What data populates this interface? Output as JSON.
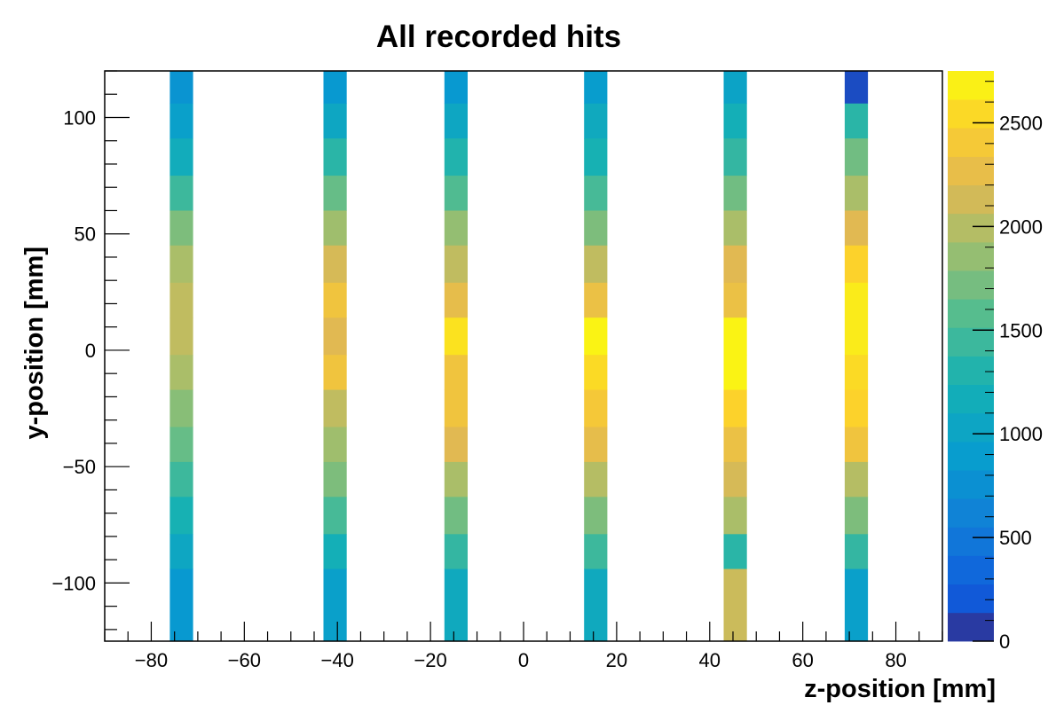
{
  "chart_data": {
    "type": "heatmap",
    "title": "All recorded hits",
    "xlabel": "z-position [mm]",
    "ylabel": "y-position [mm]",
    "xlim": [
      -90,
      90
    ],
    "ylim": [
      -125,
      120
    ],
    "xticks": [
      -80,
      -60,
      -40,
      -20,
      0,
      20,
      40,
      60,
      80
    ],
    "yticks": [
      -100,
      -50,
      0,
      50,
      100
    ],
    "xtick_labels": [
      "−80",
      "−60",
      "−40",
      "−20",
      "0",
      "20",
      "40",
      "60",
      "80"
    ],
    "ytick_labels": [
      "−100",
      "−50",
      "0",
      "50",
      "100"
    ],
    "colorbar": {
      "zlim": [
        0,
        2750
      ],
      "ticks": [
        0,
        500,
        1000,
        1500,
        2000,
        2500
      ],
      "tick_labels": [
        "0",
        "500",
        "1000",
        "1500",
        "2000",
        "2500"
      ]
    },
    "columns": [
      {
        "x_range": [
          -76,
          -71
        ],
        "values": [
          800,
          950,
          1150,
          1450,
          1750,
          1950,
          2050,
          2050,
          1950,
          1800,
          1650,
          1450,
          1250,
          1050,
          850
        ]
      },
      {
        "x_range": [
          -43,
          -38
        ],
        "values": [
          850,
          1050,
          1350,
          1650,
          1900,
          2150,
          2350,
          2200,
          2350,
          2050,
          1900,
          1750,
          1500,
          1200,
          950
        ]
      },
      {
        "x_range": [
          -17,
          -12
        ],
        "values": [
          850,
          1050,
          1300,
          1550,
          1850,
          2050,
          2250,
          2600,
          2350,
          2350,
          2200,
          1950,
          1700,
          1400,
          1100
        ]
      },
      {
        "x_range": [
          13,
          18
        ],
        "values": [
          900,
          1100,
          1250,
          1500,
          1750,
          2050,
          2300,
          2700,
          2550,
          2400,
          2250,
          2000,
          1750,
          1450,
          1100
        ]
      },
      {
        "x_range": [
          43,
          48
        ],
        "values": [
          1000,
          1200,
          1400,
          1700,
          1950,
          2200,
          2300,
          2700,
          2700,
          2500,
          2300,
          2150,
          1950,
          1350,
          2100
        ]
      },
      {
        "x_range": [
          69,
          74
        ],
        "values": [
          150,
          1350,
          1700,
          1950,
          2200,
          2500,
          2650,
          2650,
          2550,
          2500,
          2350,
          2000,
          1750,
          1400,
          950
        ]
      }
    ],
    "y_bin_edges": [
      -125,
      -94,
      -79,
      -63,
      -48,
      -33,
      -17,
      -2,
      14,
      29,
      45,
      60,
      75,
      91,
      106,
      120
    ],
    "grid": false,
    "legend": "none"
  }
}
